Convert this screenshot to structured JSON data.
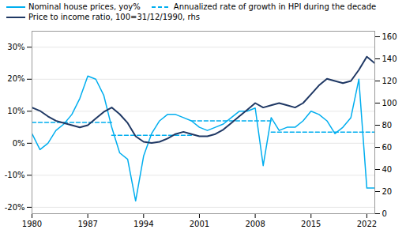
{
  "chart_data": {
    "type": "line",
    "x": [
      1980,
      1981,
      1982,
      1983,
      1984,
      1985,
      1986,
      1987,
      1988,
      1989,
      1990,
      1991,
      1992,
      1993,
      1994,
      1995,
      1996,
      1997,
      1998,
      1999,
      2000,
      2001,
      2002,
      2003,
      2004,
      2005,
      2006,
      2007,
      2008,
      2009,
      2010,
      2011,
      2012,
      2013,
      2014,
      2015,
      2016,
      2017,
      2018,
      2019,
      2020,
      2021,
      2022,
      2023
    ],
    "xlim": [
      1980,
      2023
    ],
    "xticks": [
      1980,
      1987,
      1994,
      2001,
      2008,
      2015,
      2022
    ],
    "ylim": [
      -22,
      35
    ],
    "yticks": [
      {
        "value": -20,
        "label": "-20%"
      },
      {
        "value": -10,
        "label": "-10%"
      },
      {
        "value": 0,
        "label": "0%"
      },
      {
        "value": 10,
        "label": "10%"
      },
      {
        "value": 20,
        "label": "20%"
      },
      {
        "value": 30,
        "label": "30%"
      }
    ],
    "y2lim": [
      0,
      165
    ],
    "y2ticks": [
      0,
      20,
      40,
      60,
      80,
      100,
      120,
      140,
      160
    ],
    "grid": true,
    "legend": "upper left",
    "series": [
      {
        "name": "Nominal house prices, yoy%",
        "color": "#00AEEF",
        "line_style": "solid",
        "values": [
          3,
          -2,
          0,
          4,
          6,
          9,
          14,
          21,
          20,
          15,
          5,
          -3,
          -5,
          -18,
          -4,
          3,
          7,
          9,
          9,
          8,
          7,
          5,
          4,
          5,
          6,
          8,
          10,
          10,
          11,
          -7,
          8,
          4,
          5,
          5,
          7,
          10,
          9,
          7,
          3,
          5,
          8,
          20,
          -14,
          -14
        ]
      },
      {
        "name": "Annualized rate of growth in HPI during the decade",
        "color": "#00AEEF",
        "line_style": "dashed",
        "x": [
          1980,
          1990,
          null,
          1990,
          2000,
          null,
          2000,
          2010,
          null,
          2010,
          2023
        ],
        "values": [
          6.5,
          6.5,
          null,
          2.5,
          2.5,
          null,
          7.0,
          7.0,
          null,
          3.5,
          3.5
        ]
      },
      {
        "name": "Price to income ratio, 100=31/12/1990, rhs",
        "color": "#1F3864",
        "line_style": "solid",
        "axis": "y2",
        "values": [
          96,
          93,
          88,
          84,
          82,
          80,
          78,
          80,
          86,
          92,
          96,
          90,
          82,
          70,
          65,
          64,
          65,
          68,
          72,
          74,
          72,
          70,
          70,
          72,
          76,
          82,
          88,
          94,
          100,
          96,
          98,
          100,
          98,
          96,
          100,
          108,
          116,
          122,
          120,
          118,
          120,
          130,
          142,
          136
        ]
      }
    ]
  }
}
